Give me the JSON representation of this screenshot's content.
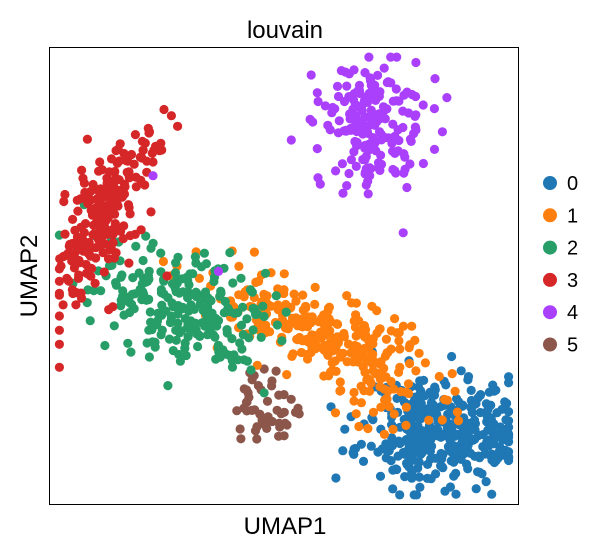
{
  "chart_data": {
    "type": "scatter",
    "title": "louvain",
    "xlabel": "UMAP1",
    "ylabel": "UMAP2",
    "xlim": [
      0,
      10
    ],
    "ylim": [
      0,
      10
    ],
    "xticks": "none",
    "yticks": "none",
    "grid": false,
    "legend_position": "right",
    "legend": [
      {
        "name": "0",
        "color": "#1f77b4"
      },
      {
        "name": "1",
        "color": "#ff7f0e"
      },
      {
        "name": "2",
        "color": "#279e68"
      },
      {
        "name": "3",
        "color": "#d62728"
      },
      {
        "name": "4",
        "color": "#aa40fc"
      },
      {
        "name": "5",
        "color": "#8c564b"
      }
    ],
    "clusters": [
      {
        "name": "5",
        "color": "#8c564b",
        "n": 45,
        "center": [
          4.6,
          2.0
        ],
        "spread": [
          0.35,
          0.4
        ],
        "seed": 55,
        "extra": [
          [
            4.2,
            2.5
          ],
          [
            5.3,
            2.1
          ],
          [
            5.0,
            2.4
          ]
        ]
      },
      {
        "name": "0",
        "color": "#1f77b4",
        "n": 360,
        "center": [
          8.4,
          1.6
        ],
        "spread": [
          0.85,
          0.6
        ],
        "seed": 11,
        "extra": [
          [
            7.4,
            2.6
          ],
          [
            7.9,
            2.7
          ],
          [
            9.5,
            1.0
          ],
          [
            9.7,
            1.6
          ],
          [
            7.3,
            1.9
          ],
          [
            9.2,
            2.4
          ]
        ]
      },
      {
        "name": "1",
        "color": "#ff7f0e",
        "n": 300,
        "center": [
          5.9,
          3.6
        ],
        "spread": [
          1.3,
          0.45
        ],
        "seed": 22,
        "axis": [
          0.88,
          -0.48
        ],
        "extra": [
          [
            4.6,
            4.5
          ],
          [
            5.0,
            4.7
          ],
          [
            6.1,
            2.0
          ],
          [
            6.6,
            1.7
          ],
          [
            7.2,
            2.3
          ],
          [
            3.9,
            4.1
          ]
        ]
      },
      {
        "name": "2",
        "color": "#279e68",
        "n": 240,
        "center": [
          2.9,
          4.3
        ],
        "spread": [
          1.0,
          0.55
        ],
        "seed": 33,
        "axis": [
          0.9,
          -0.44
        ],
        "extra": [
          [
            3.3,
            5.5
          ],
          [
            1.7,
            4.2
          ],
          [
            3.9,
            3.0
          ],
          [
            2.0,
            4.6
          ],
          [
            4.1,
            3.4
          ]
        ]
      },
      {
        "name": "3",
        "color": "#d62728",
        "n": 230,
        "center": [
          1.2,
          6.3
        ],
        "spread": [
          0.4,
          1.1
        ],
        "seed": 44,
        "curve": true,
        "extra": [
          [
            1.5,
            7.9
          ],
          [
            2.2,
            7.5
          ],
          [
            0.8,
            8.0
          ],
          [
            2.5,
            5.0
          ],
          [
            6.9,
            8.0
          ]
        ]
      },
      {
        "name": "4",
        "color": "#aa40fc",
        "n": 190,
        "center": [
          6.9,
          8.2
        ],
        "spread": [
          0.55,
          0.7
        ],
        "seed": 66,
        "extra": [
          [
            7.0,
            9.4
          ],
          [
            7.4,
            9.1
          ],
          [
            6.5,
            9.0
          ],
          [
            7.7,
            8.0
          ],
          [
            7.8,
            8.5
          ],
          [
            6.8,
            6.8
          ],
          [
            2.2,
            7.2
          ],
          [
            3.6,
            5.1
          ]
        ]
      }
    ]
  }
}
